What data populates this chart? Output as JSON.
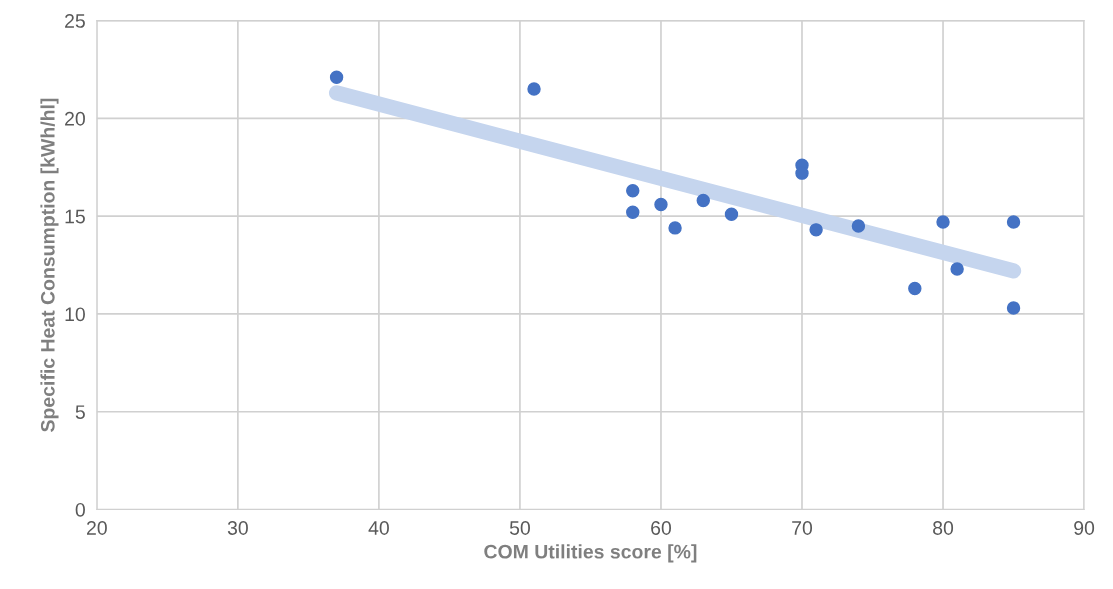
{
  "chart_data": {
    "type": "scatter",
    "xlabel": "COM Utilities score [%]",
    "ylabel": "Specific Heat Consumption [kWh/hl]",
    "xlim": [
      20,
      90
    ],
    "xticks": [
      20,
      30,
      40,
      50,
      60,
      70,
      80,
      90
    ],
    "ylim": [
      0,
      25
    ],
    "yticks": [
      0,
      5,
      10,
      15,
      20,
      25
    ],
    "grid": true,
    "series": [
      {
        "marker": "circle",
        "color": "#4472c4",
        "x": [
          37,
          51,
          58,
          58,
          60,
          61,
          63,
          65,
          70,
          70,
          71,
          74,
          78,
          80,
          81,
          85,
          85
        ],
        "values": [
          22.1,
          21.5,
          16.3,
          15.2,
          15.6,
          14.4,
          15.8,
          15.1,
          17.6,
          17.2,
          14.3,
          14.5,
          11.3,
          14.7,
          12.3,
          14.7,
          10.3
        ]
      },
      {
        "type": "line",
        "color": "#c5d5ee",
        "x": [
          37,
          85
        ],
        "values": [
          21.3,
          12.2
        ]
      }
    ]
  }
}
